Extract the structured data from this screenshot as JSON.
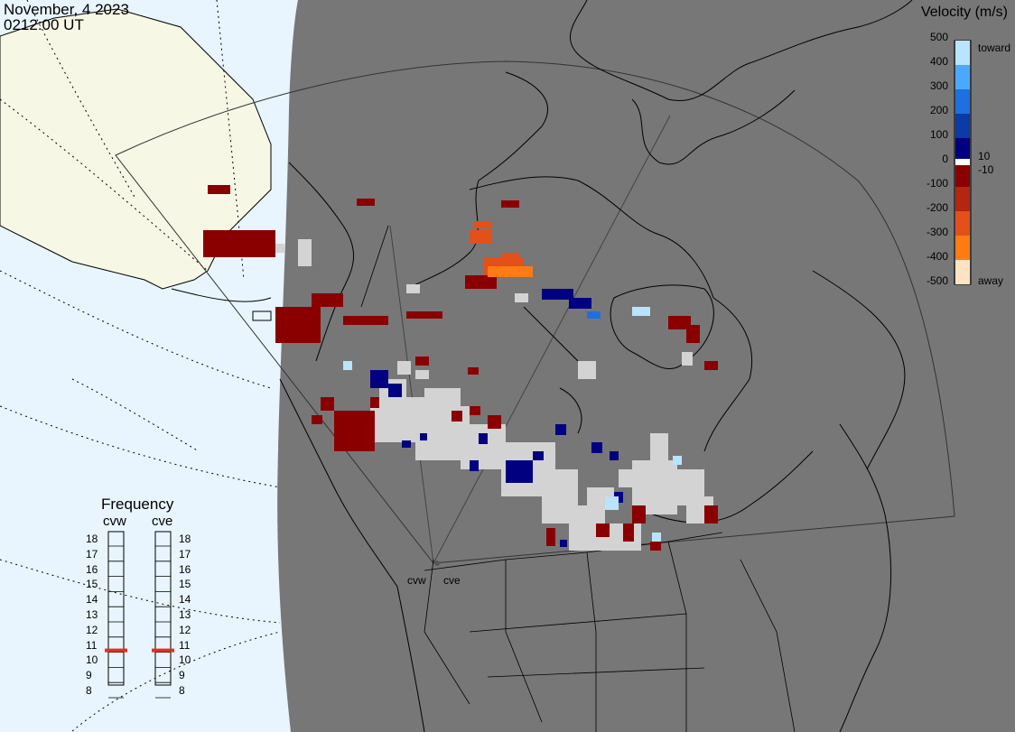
{
  "header": {
    "date": "November, 4 2023",
    "time": "0212:00 UT"
  },
  "colorbar": {
    "title": "Velocity (m/s)",
    "ticks": [
      "500",
      "400",
      "300",
      "200",
      "100",
      "0",
      "-100",
      "-200",
      "-300",
      "-400",
      "-500"
    ],
    "inner_labels": [
      "10",
      "-10"
    ],
    "toward_label": "toward",
    "away_label": "away",
    "colors": [
      "#fde3c4",
      "#ffa634",
      "#ff7b14",
      "#e3501a",
      "#b3260f",
      "#8a0000",
      "#000080",
      "#0a3ba6",
      "#1e6fe0",
      "#4aa9ff",
      "#b8e4ff"
    ]
  },
  "frequency": {
    "title": "Frequency",
    "radars": [
      {
        "code": "cvw",
        "value_mhz": 11
      },
      {
        "code": "cve",
        "value_mhz": 11
      }
    ],
    "scale": [
      "18",
      "17",
      "16",
      "15",
      "14",
      "13",
      "12",
      "11",
      "10",
      "9",
      "8"
    ],
    "indicator_color": "#e0301e"
  },
  "radar_sites": [
    "cvw",
    "cve"
  ],
  "colors": {
    "land_fill": "#777777",
    "night_sky": "#e8f5fe",
    "day_land": "#f7f7e6",
    "ground_scatter": "#d3d3d3"
  }
}
